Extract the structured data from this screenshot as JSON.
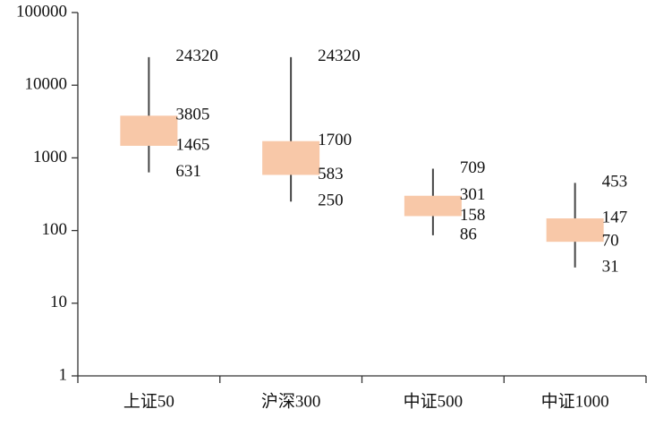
{
  "chart_data": {
    "type": "box",
    "categories": [
      "上证50",
      "沪深300",
      "中证500",
      "中证1000"
    ],
    "high": [
      24320,
      24320,
      709,
      453
    ],
    "upper": [
      3805,
      1700,
      301,
      147
    ],
    "lower": [
      1465,
      583,
      158,
      70
    ],
    "low": [
      631,
      250,
      86,
      31
    ],
    "color": "#f8c8a8",
    "whisker_color": "#444444",
    "log_scale": true,
    "ylim": [
      1,
      100000
    ],
    "yticks": [
      1,
      10,
      100,
      1000,
      10000,
      100000
    ]
  }
}
